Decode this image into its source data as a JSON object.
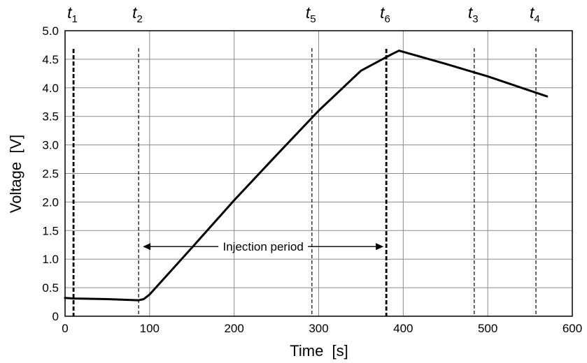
{
  "chart_data": {
    "type": "line",
    "xlabel": "Time  [s]",
    "ylabel": "Voltage  [V]",
    "xlim": [
      0,
      600
    ],
    "ylim": [
      0,
      5.0
    ],
    "x_ticks": [
      "0",
      "100",
      "200",
      "300",
      "400",
      "500",
      "600"
    ],
    "y_ticks": [
      "0",
      "0.5",
      "1.0",
      "1.5",
      "2.0",
      "2.5",
      "3.0",
      "3.5",
      "4.0",
      "4.5",
      "5.0"
    ],
    "grid": true,
    "series": [
      {
        "x": [
          0,
          10,
          50,
          87,
          93,
          100,
          150,
          200,
          250,
          300,
          350,
          388,
          395,
          450,
          500,
          570
        ],
        "y": [
          0.32,
          0.31,
          0.3,
          0.28,
          0.3,
          0.38,
          1.2,
          2.03,
          2.82,
          3.6,
          4.3,
          4.6,
          4.65,
          4.42,
          4.2,
          3.85
        ]
      }
    ],
    "markers": [
      {
        "label": "t",
        "sub": "1",
        "x": 10,
        "style": "bold"
      },
      {
        "label": "t",
        "sub": "2",
        "x": 87,
        "style": "thin"
      },
      {
        "label": "t",
        "sub": "5",
        "x": 292,
        "style": "thin"
      },
      {
        "label": "t",
        "sub": "6",
        "x": 380,
        "style": "bold"
      },
      {
        "label": "t",
        "sub": "3",
        "x": 484,
        "style": "thin"
      },
      {
        "label": "t",
        "sub": "4",
        "x": 557,
        "style": "thin"
      }
    ],
    "annotation": {
      "text": "Injection period",
      "x_start": 87,
      "x_end": 380,
      "y": 1.22
    }
  }
}
